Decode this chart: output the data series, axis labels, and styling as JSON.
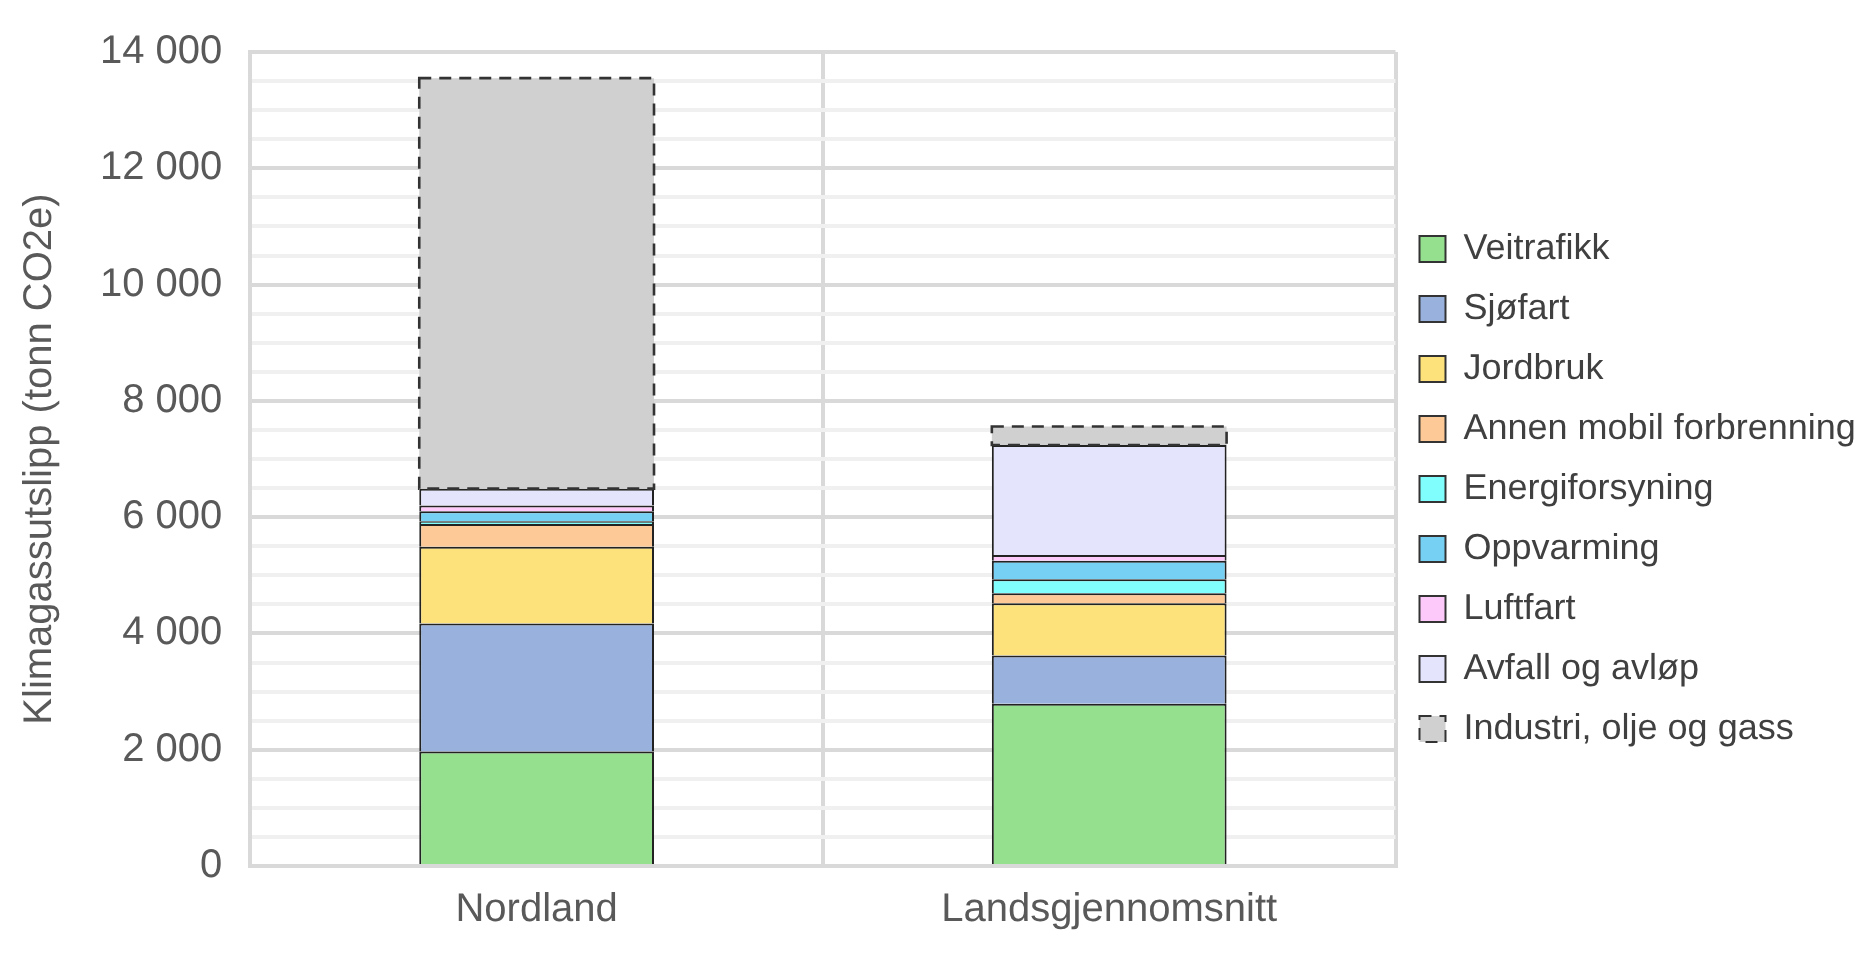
{
  "chart_data": {
    "type": "bar",
    "stacked": true,
    "ylabel": "Klimagassutslipp (tonn CO2e)",
    "categories": [
      "Nordland",
      "Landsgjennomsnitt"
    ],
    "series": [
      {
        "name": "Veitrafikk",
        "color": "#95e08f",
        "values": [
          1970,
          2790
        ]
      },
      {
        "name": "Sjøfart",
        "color": "#98b2dd",
        "values": [
          2200,
          830
        ]
      },
      {
        "name": "Jordbruk",
        "color": "#fde27c",
        "values": [
          1320,
          900
        ]
      },
      {
        "name": "Annen mobil forbrenning",
        "color": "#fdc996",
        "values": [
          390,
          170
        ]
      },
      {
        "name": "Energiforsyning",
        "color": "#80fdfd",
        "values": [
          50,
          240
        ]
      },
      {
        "name": "Oppvarming",
        "color": "#75d0f3",
        "values": [
          170,
          320
        ]
      },
      {
        "name": "Luftfart",
        "color": "#fdc9fb",
        "values": [
          100,
          100
        ]
      },
      {
        "name": "Avfall og avløp",
        "color": "#e4e4fd",
        "values": [
          290,
          1890
        ]
      },
      {
        "name": "Industri, olje og gass",
        "color": "#d0d0d0",
        "line_style": "dashed",
        "values": [
          7060,
          320
        ]
      }
    ],
    "ylim": [
      0,
      14000
    ],
    "yticks": [
      {
        "value": 0,
        "label": "0"
      },
      {
        "value": 500,
        "label": null
      },
      {
        "value": 1000,
        "label": null
      },
      {
        "value": 1500,
        "label": null
      },
      {
        "value": 2000,
        "label": "2 000"
      },
      {
        "value": 2500,
        "label": null
      },
      {
        "value": 3000,
        "label": null
      },
      {
        "value": 3500,
        "label": null
      },
      {
        "value": 4000,
        "label": "4 000"
      },
      {
        "value": 4500,
        "label": null
      },
      {
        "value": 5000,
        "label": null
      },
      {
        "value": 5500,
        "label": null
      },
      {
        "value": 6000,
        "label": "6 000"
      },
      {
        "value": 6500,
        "label": null
      },
      {
        "value": 7000,
        "label": null
      },
      {
        "value": 7500,
        "label": null
      },
      {
        "value": 8000,
        "label": "8 000"
      },
      {
        "value": 8500,
        "label": null
      },
      {
        "value": 9000,
        "label": null
      },
      {
        "value": 9500,
        "label": null
      },
      {
        "value": 10000,
        "label": "10 000"
      },
      {
        "value": 10500,
        "label": null
      },
      {
        "value": 11000,
        "label": null
      },
      {
        "value": 11500,
        "label": null
      },
      {
        "value": 12000,
        "label": "12 000"
      },
      {
        "value": 12500,
        "label": null
      },
      {
        "value": 13000,
        "label": null
      },
      {
        "value": 13500,
        "label": null
      },
      {
        "value": 14000,
        "label": "14 000"
      }
    ],
    "grid": true,
    "legend": "right"
  }
}
